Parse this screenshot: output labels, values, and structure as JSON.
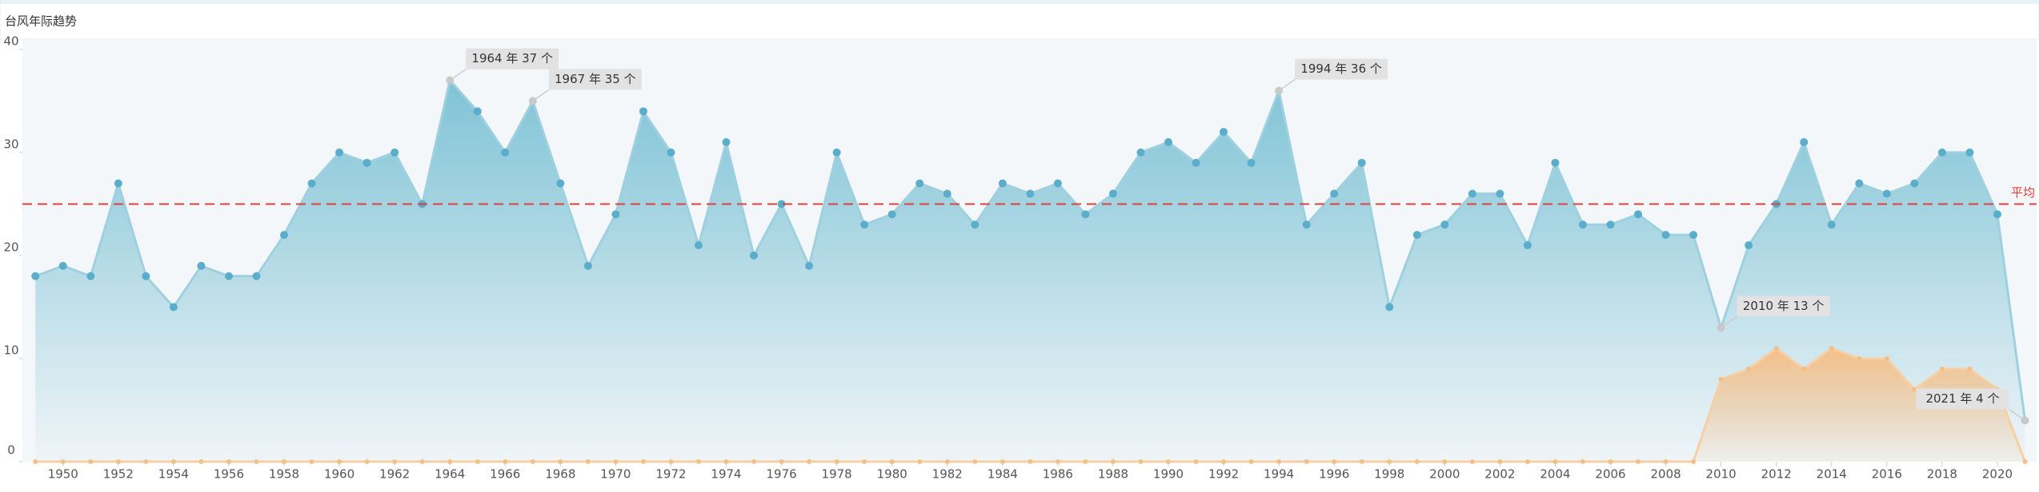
{
  "panel_title": "台风年际趋势",
  "chart_data": {
    "type": "area",
    "x": [
      1949,
      1950,
      1951,
      1952,
      1953,
      1954,
      1955,
      1956,
      1957,
      1958,
      1959,
      1960,
      1961,
      1962,
      1963,
      1964,
      1965,
      1966,
      1967,
      1968,
      1969,
      1970,
      1971,
      1972,
      1973,
      1974,
      1975,
      1976,
      1977,
      1978,
      1979,
      1980,
      1981,
      1982,
      1983,
      1984,
      1985,
      1986,
      1987,
      1988,
      1989,
      1990,
      1991,
      1992,
      1993,
      1994,
      1995,
      1996,
      1997,
      1998,
      1999,
      2000,
      2001,
      2002,
      2003,
      2004,
      2005,
      2006,
      2007,
      2008,
      2009,
      2010,
      2011,
      2012,
      2013,
      2014,
      2015,
      2016,
      2017,
      2018,
      2019,
      2020,
      2021
    ],
    "series": [
      {
        "color": "#5aaecb",
        "values": [
          18,
          19,
          18,
          27,
          18,
          15,
          19,
          18,
          18,
          22,
          27,
          30,
          29,
          30,
          25,
          37,
          34,
          30,
          35,
          27,
          19,
          24,
          34,
          30,
          21,
          31,
          20,
          25,
          19,
          30,
          23,
          24,
          27,
          26,
          23,
          27,
          26,
          27,
          24,
          26,
          30,
          31,
          29,
          32,
          29,
          36,
          23,
          26,
          29,
          15,
          22,
          23,
          26,
          26,
          21,
          29,
          23,
          23,
          24,
          22,
          22,
          13,
          21,
          25,
          31,
          23,
          27,
          26,
          27,
          30,
          30,
          24,
          4
        ]
      },
      {
        "color": "#f3bf86",
        "values": [
          0,
          0,
          0,
          0,
          0,
          0,
          0,
          0,
          0,
          0,
          0,
          0,
          0,
          0,
          0,
          0,
          0,
          0,
          0,
          0,
          0,
          0,
          0,
          0,
          0,
          0,
          0,
          0,
          0,
          0,
          0,
          0,
          0,
          0,
          0,
          0,
          0,
          0,
          0,
          0,
          0,
          0,
          0,
          0,
          0,
          0,
          0,
          0,
          0,
          0,
          0,
          0,
          0,
          0,
          0,
          0,
          0,
          0,
          0,
          0,
          0,
          8,
          9,
          11,
          9,
          11,
          10,
          10,
          7,
          9,
          9,
          7,
          0
        ]
      }
    ],
    "xlim": [
      1948.53,
      2021.42
    ],
    "xticks": [
      1950,
      1952,
      1954,
      1956,
      1958,
      1960,
      1962,
      1964,
      1966,
      1968,
      1970,
      1972,
      1974,
      1976,
      1978,
      1980,
      1982,
      1984,
      1986,
      1988,
      1990,
      1992,
      1994,
      1996,
      1998,
      2000,
      2002,
      2004,
      2006,
      2008,
      2010,
      2012,
      2014,
      2016,
      2018,
      2020
    ],
    "ylim": [
      0,
      41
    ],
    "yticks": [
      0,
      10,
      20,
      30,
      40
    ],
    "grid": false,
    "average": {
      "label": "平均",
      "value": 25,
      "color": "#e0403a"
    },
    "annotations": [
      {
        "text": "1964 年 37 个",
        "x": 1964,
        "y": 37
      },
      {
        "text": "1967 年 35 个",
        "x": 1967,
        "y": 35
      },
      {
        "text": "1994 年 36 个",
        "x": 1994,
        "y": 36
      },
      {
        "text": "2010 年 13 个",
        "x": 2010,
        "y": 13
      },
      {
        "text": "2021 年 4 个",
        "x": 2021,
        "y": 4
      }
    ]
  }
}
